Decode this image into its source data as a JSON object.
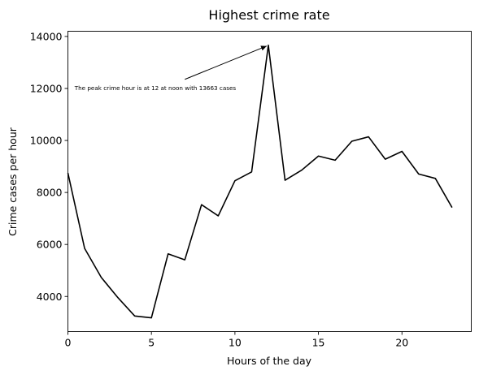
{
  "chart_data": {
    "type": "line",
    "title": "Highest crime rate",
    "xlabel": "Hours of the day",
    "ylabel": "Crime cases per hour",
    "xlim": [
      0,
      24.15
    ],
    "ylim": [
      2650,
      14200
    ],
    "xticks": [
      0,
      5,
      10,
      15,
      20
    ],
    "yticks": [
      4000,
      6000,
      8000,
      10000,
      12000,
      14000
    ],
    "grid": false,
    "line_color": "#000000",
    "series": [
      {
        "x": [
          0,
          1,
          2,
          3,
          4,
          5,
          6,
          7,
          8,
          9,
          10,
          11,
          12,
          13,
          14,
          15,
          16,
          17,
          18,
          19,
          20,
          21,
          22,
          23
        ],
        "values": [
          8750,
          5850,
          4730,
          3950,
          3250,
          3180,
          5640,
          5410,
          7530,
          7100,
          8450,
          8790,
          13663,
          8470,
          8860,
          9400,
          9240,
          9970,
          10140,
          9280,
          9580,
          8710,
          8540,
          7420
        ]
      }
    ],
    "annotation": {
      "text": "The peak crime hour is at 12 at noon with 13663 cases",
      "text_x": 0.4,
      "text_y": 12000,
      "arrow_from": [
        7,
        12350
      ],
      "arrow_to": [
        12,
        13663
      ]
    }
  }
}
